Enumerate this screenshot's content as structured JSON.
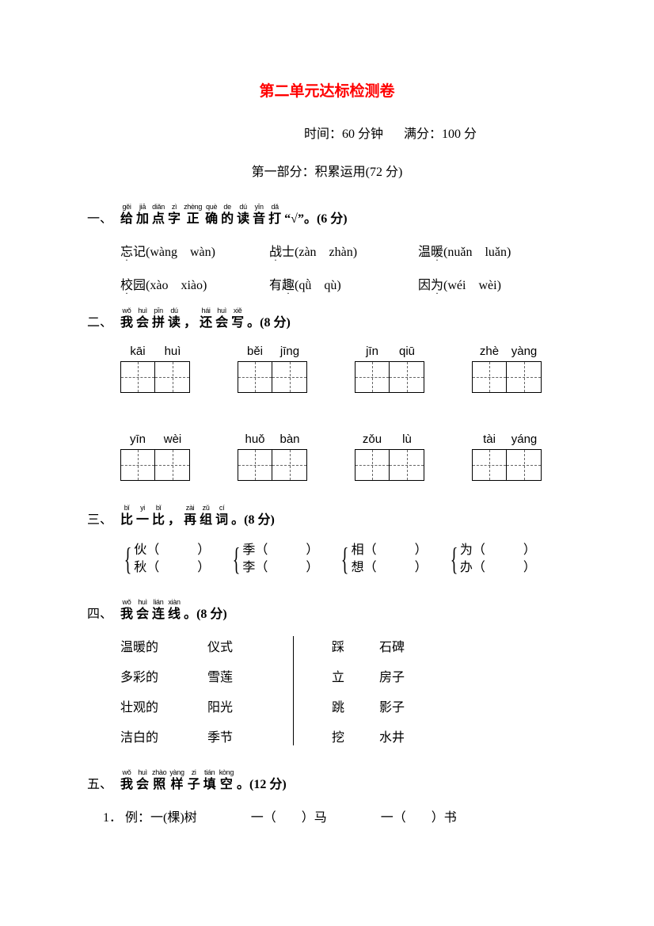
{
  "colors": {
    "title": "#ff0000",
    "text": "#000000",
    "background": "#ffffff",
    "box_border": "#000000",
    "dash": "#666666"
  },
  "title": "第二单元达标检测卷",
  "meta": {
    "time_label": "时间：",
    "time_value": "60 分钟",
    "score_label": "满分：",
    "score_value": "100 分"
  },
  "part_label": "第一部分：积累运用(72 分)",
  "q1": {
    "num": "一、",
    "heading_ruby": [
      {
        "p": "gěi",
        "c": "给"
      },
      {
        "p": "jiā",
        "c": "加"
      },
      {
        "p": "diǎn",
        "c": "点"
      },
      {
        "p": "zì",
        "c": "字"
      },
      {
        "p": "zhèng",
        "c": "正"
      },
      {
        "p": "què",
        "c": "确"
      },
      {
        "p": "de",
        "c": "的"
      },
      {
        "p": "dú",
        "c": "读"
      },
      {
        "p": "yīn",
        "c": "音"
      },
      {
        "p": "dǎ",
        "c": "打"
      }
    ],
    "heading_tail": "“√”。(6 分)",
    "rows": [
      [
        {
          "char": "忘",
          "word": "忘记",
          "opts": "(wàng　wàn)"
        },
        {
          "char": "战",
          "word": "战士",
          "opts": "(zàn　zhàn)"
        },
        {
          "char": "暖",
          "word": "温暖",
          "opts": "(nuǎn　luǎn)"
        }
      ],
      [
        {
          "char": "校",
          "word": "校园",
          "opts": "(xào　xiào)"
        },
        {
          "char": "趣",
          "word": "有趣",
          "opts": "(qǜ　qù)"
        },
        {
          "char": "为",
          "word": "因为",
          "opts": "(wéi　wèi)"
        }
      ]
    ]
  },
  "q2": {
    "num": "二、",
    "heading_ruby": [
      {
        "p": "wǒ",
        "c": "我"
      },
      {
        "p": "huì",
        "c": "会"
      },
      {
        "p": "pīn",
        "c": "拼"
      },
      {
        "p": "dú",
        "c": "读"
      },
      {
        "p": "",
        "c": "，"
      },
      {
        "p": "hái",
        "c": "还"
      },
      {
        "p": "huì",
        "c": "会"
      },
      {
        "p": "xiě",
        "c": "写"
      }
    ],
    "heading_tail": "。(8 分)",
    "cells": [
      [
        "kāi",
        "huì"
      ],
      [
        "běi",
        "jīng"
      ],
      [
        "jīn",
        "qiū"
      ],
      [
        "zhè",
        "yàng"
      ],
      [
        "yīn",
        "wèi"
      ],
      [
        "huǒ",
        "bàn"
      ],
      [
        "zǒu",
        "lù"
      ],
      [
        "tài",
        "yáng"
      ]
    ]
  },
  "q3": {
    "num": "三、",
    "heading_ruby": [
      {
        "p": "bǐ",
        "c": "比"
      },
      {
        "p": "yi",
        "c": "一"
      },
      {
        "p": "bǐ",
        "c": "比"
      },
      {
        "p": "",
        "c": "，"
      },
      {
        "p": "zài",
        "c": "再"
      },
      {
        "p": "zǔ",
        "c": "组"
      },
      {
        "p": "cí",
        "c": "词"
      }
    ],
    "heading_tail": "。(8 分)",
    "groups": [
      [
        "伙（　　　）",
        "秋（　　　）"
      ],
      [
        "季（　　　）",
        "李（　　　）"
      ],
      [
        "相（　　　）",
        "想（　　　）"
      ],
      [
        "为（　　　）",
        "办（　　　）"
      ]
    ]
  },
  "q4": {
    "num": "四、",
    "heading_ruby": [
      {
        "p": "wǒ",
        "c": "我"
      },
      {
        "p": "huì",
        "c": "会"
      },
      {
        "p": "lián",
        "c": "连"
      },
      {
        "p": "xiàn",
        "c": "线"
      }
    ],
    "heading_tail": "。(8 分)",
    "left_a": [
      "温暖的",
      "多彩的",
      "壮观的",
      "洁白的"
    ],
    "left_b": [
      "仪式",
      "雪莲",
      "阳光",
      "季节"
    ],
    "right_a": [
      "踩",
      "立",
      "跳",
      "挖"
    ],
    "right_b": [
      "石碑",
      "房子",
      "影子",
      "水井"
    ]
  },
  "q5": {
    "num": "五、",
    "heading_ruby": [
      {
        "p": "wǒ",
        "c": "我"
      },
      {
        "p": "huì",
        "c": "会"
      },
      {
        "p": "zhào",
        "c": "照"
      },
      {
        "p": "yàng",
        "c": "样"
      },
      {
        "p": "zi",
        "c": "子"
      },
      {
        "p": "tián",
        "c": "填"
      },
      {
        "p": "kòng",
        "c": "空"
      }
    ],
    "heading_tail": "。(12 分)",
    "line1": {
      "idx": "1．",
      "example": "例：一(棵)树",
      "items": [
        "一（　　）马",
        "一（　　）书"
      ]
    }
  }
}
